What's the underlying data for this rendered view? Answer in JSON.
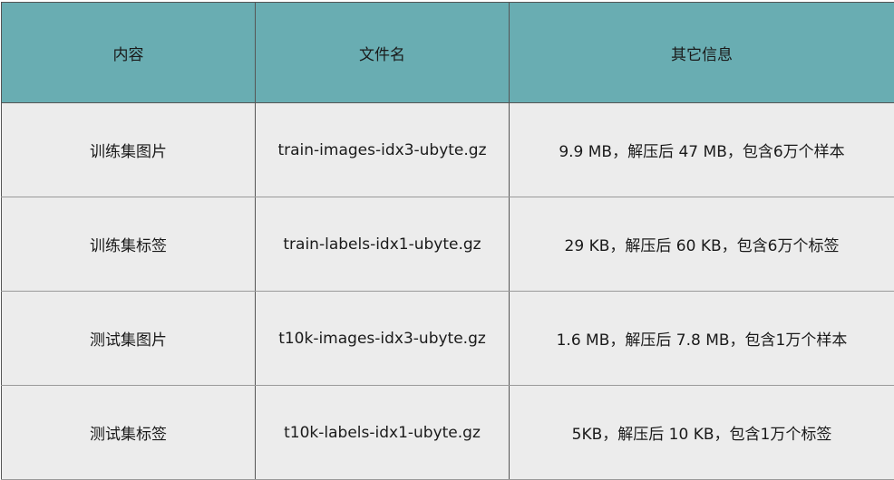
{
  "table": {
    "headers": [
      "内容",
      "文件名",
      "其它信息"
    ],
    "rows": [
      [
        "训练集图片",
        "train-images-idx3-ubyte.gz",
        "9.9 MB，解压后 47 MB，包含6万个样本"
      ],
      [
        "训练集标签",
        "train-labels-idx1-ubyte.gz",
        "29 KB，解压后 60 KB，包含6万个标签"
      ],
      [
        "测试集图片",
        "t10k-images-idx3-ubyte.gz",
        "1.6 MB，解压后 7.8 MB，包含1万个样本"
      ],
      [
        "测试集标签",
        "t10k-labels-idx1-ubyte.gz",
        "5KB，解压后 10 KB，包含1万个标签"
      ]
    ]
  },
  "colors": {
    "header_bg": "#69adb2",
    "row_bg": "#ececec"
  }
}
